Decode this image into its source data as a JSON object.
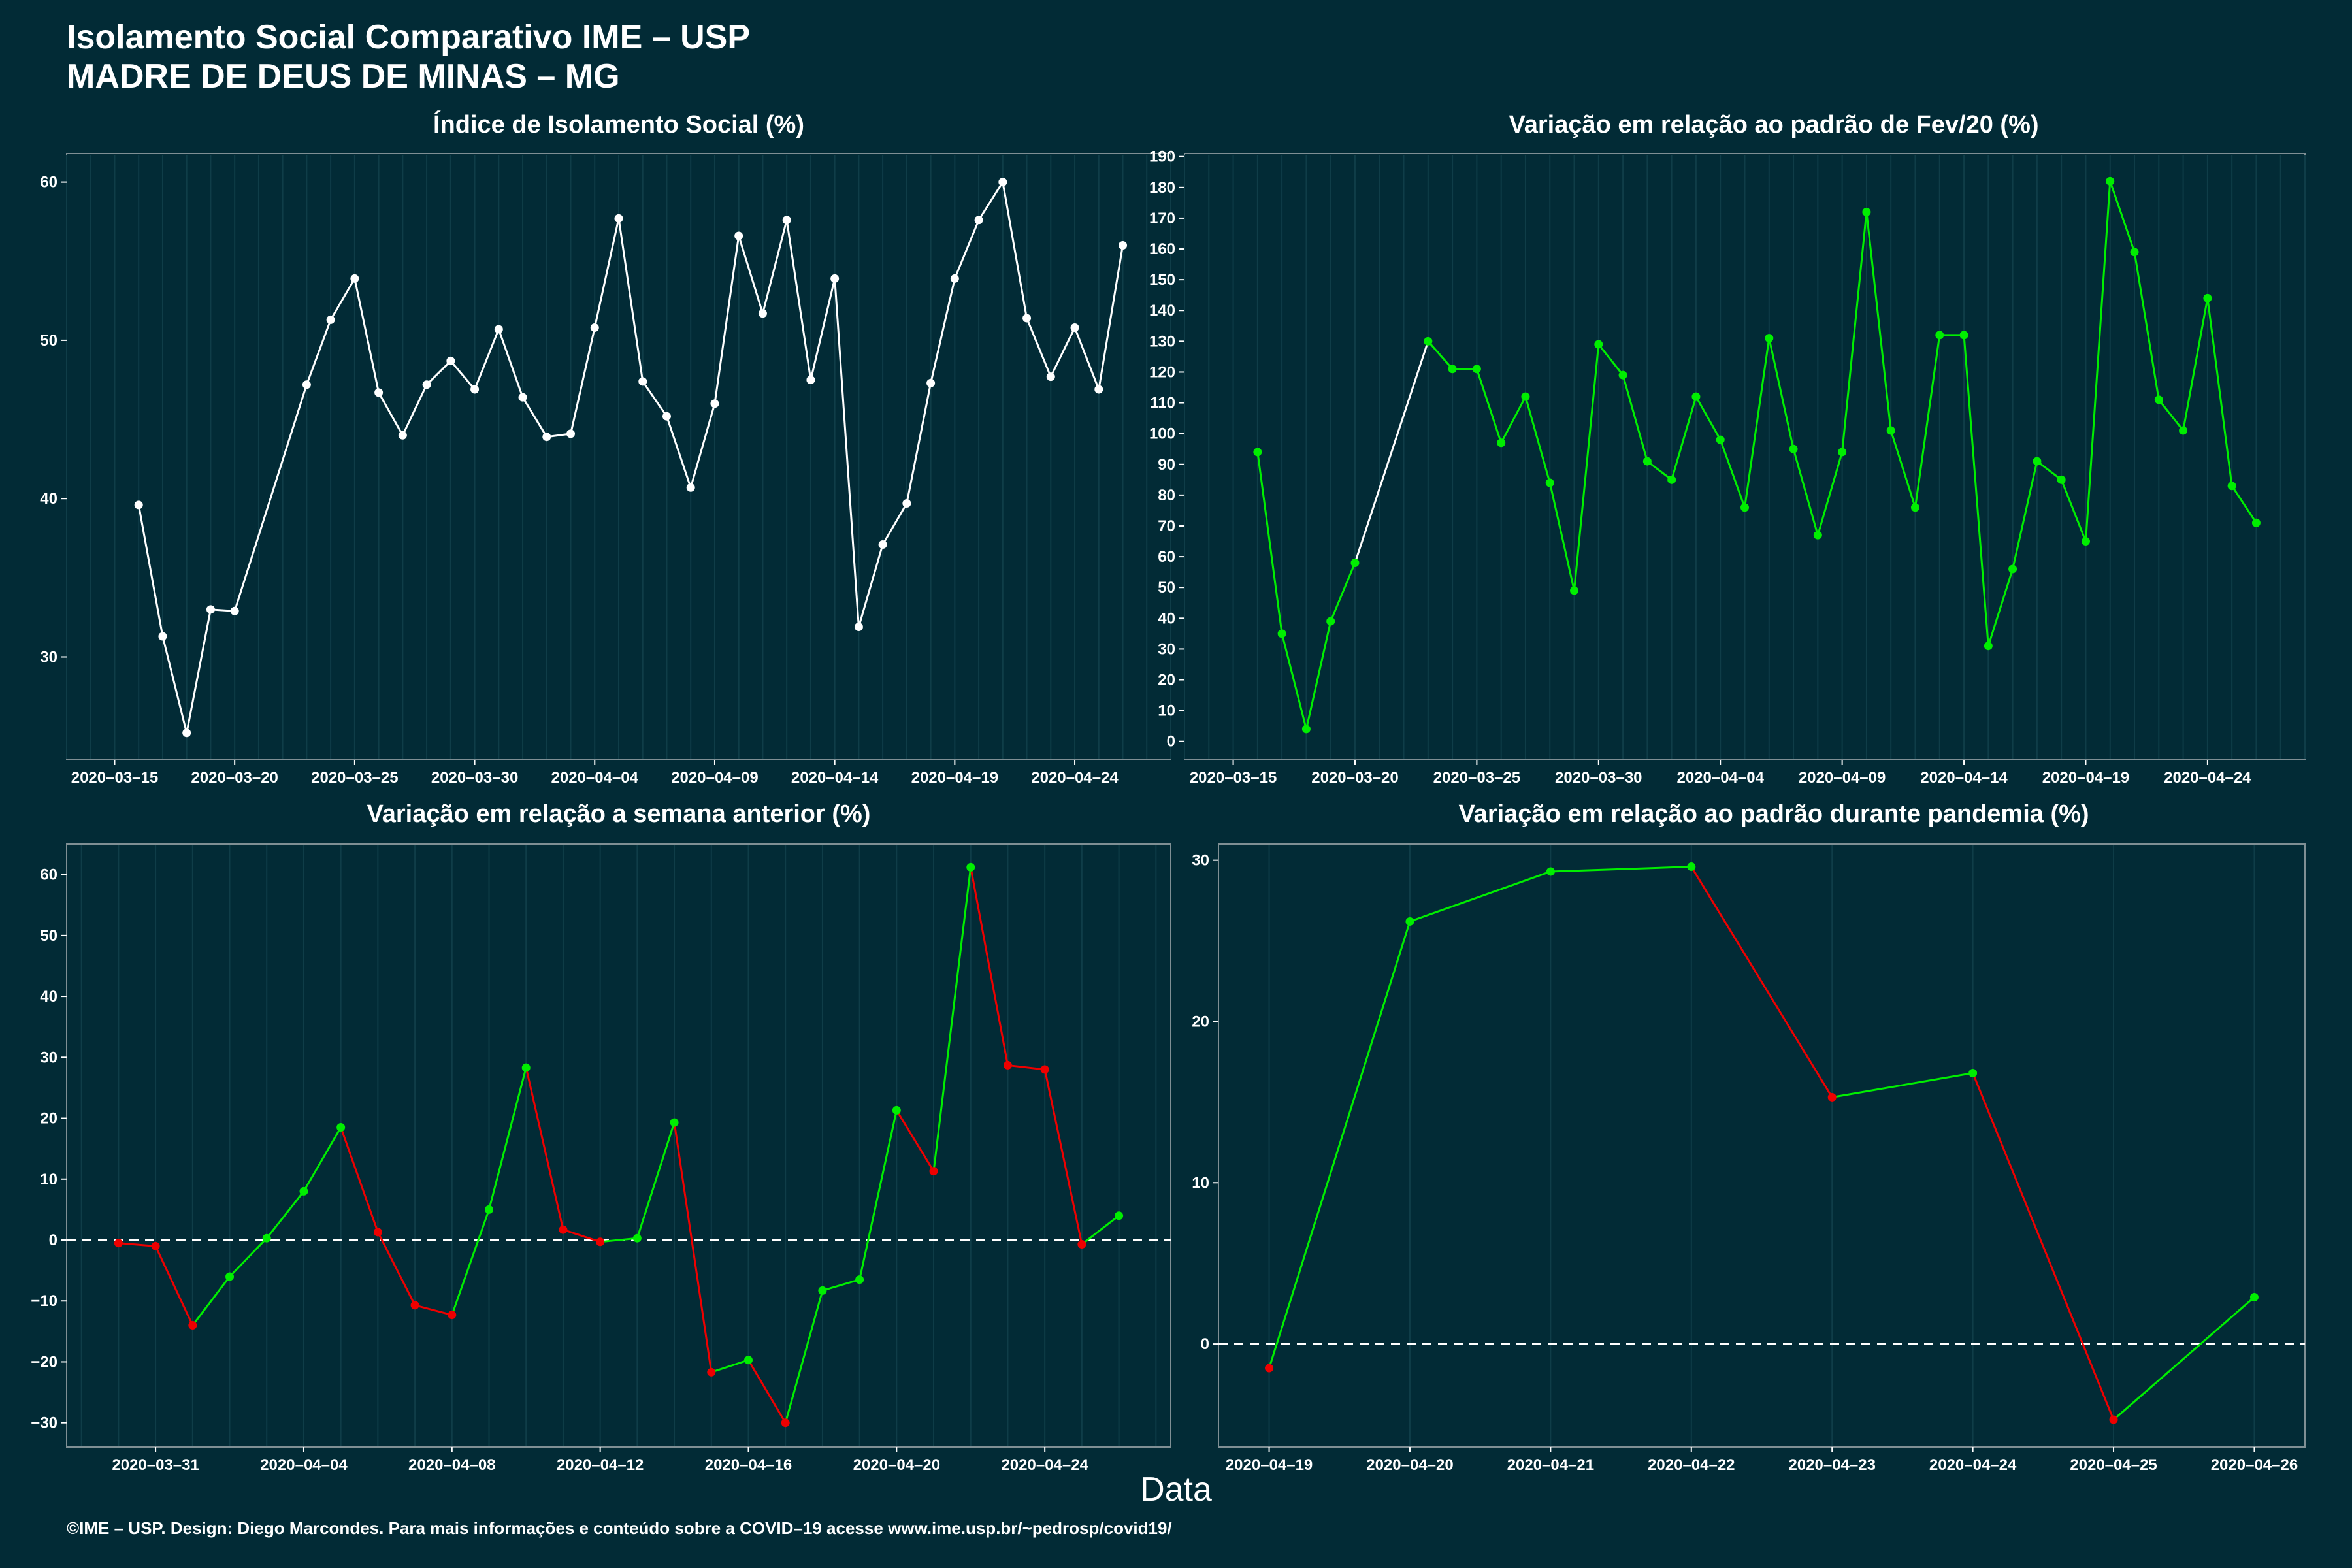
{
  "header": {
    "title_line1": "Isolamento Social Comparativo IME – USP",
    "title_line2": "MADRE DE DEUS DE MINAS – MG"
  },
  "xlabel": "Data",
  "footer": "©IME – USP. Design: Diego Marcondes. Para mais informações e conteúdo sobre a COVID–19 acesse www.ime.usp.br/~pedrosp/covid19/",
  "colors": {
    "background": "#022b36",
    "positive": "#00ee00",
    "negative": "#ee0000",
    "neutral": "#ffffff"
  },
  "chart_data": [
    {
      "type": "line",
      "title": "Índice de Isolamento Social (%)",
      "color_mode": "white",
      "x": [
        "2020-03-16",
        "2020-03-17",
        "2020-03-18",
        "2020-03-19",
        "2020-03-20",
        "2020-03-23",
        "2020-03-24",
        "2020-03-25",
        "2020-03-26",
        "2020-03-27",
        "2020-03-28",
        "2020-03-29",
        "2020-03-30",
        "2020-03-31",
        "2020-04-01",
        "2020-04-02",
        "2020-04-03",
        "2020-04-04",
        "2020-04-05",
        "2020-04-06",
        "2020-04-07",
        "2020-04-08",
        "2020-04-09",
        "2020-04-10",
        "2020-04-11",
        "2020-04-12",
        "2020-04-13",
        "2020-04-14",
        "2020-04-15",
        "2020-04-16",
        "2020-04-17",
        "2020-04-18",
        "2020-04-19",
        "2020-04-20",
        "2020-04-21",
        "2020-04-22",
        "2020-04-23",
        "2020-04-24",
        "2020-04-25",
        "2020-04-26"
      ],
      "y": [
        39.6,
        31.3,
        25.2,
        33.0,
        32.9,
        47.2,
        51.3,
        53.9,
        46.7,
        44.0,
        47.2,
        48.7,
        46.9,
        50.7,
        46.4,
        43.9,
        44.1,
        50.8,
        57.7,
        47.4,
        45.2,
        40.7,
        46.0,
        56.6,
        51.7,
        57.6,
        47.5,
        53.9,
        31.9,
        37.1,
        39.7,
        47.3,
        53.9,
        57.6,
        60.0,
        51.4,
        47.7,
        50.8,
        46.9,
        56.0
      ],
      "xticks": [
        "2020–03–15",
        "2020–03–20",
        "2020–03–25",
        "2020–03–30",
        "2020–04–04",
        "2020–04–09",
        "2020–04–14",
        "2020–04–19",
        "2020–04–24"
      ],
      "yticks": [
        "30",
        "40",
        "50",
        "60"
      ],
      "xlim": [
        "2020-03-13",
        "2020-04-28"
      ],
      "ylim": [
        23.5,
        61.8
      ],
      "reference_line": null
    },
    {
      "type": "line",
      "title": "Variação em relação ao padrão de Fev/20 (%)",
      "color_mode": "green_then_white",
      "x": [
        "2020-03-16",
        "2020-03-17",
        "2020-03-18",
        "2020-03-19",
        "2020-03-20",
        "2020-03-23",
        "2020-03-24",
        "2020-03-25",
        "2020-03-26",
        "2020-03-27",
        "2020-03-28",
        "2020-03-29",
        "2020-03-30",
        "2020-03-31",
        "2020-04-01",
        "2020-04-02",
        "2020-04-03",
        "2020-04-04",
        "2020-04-05",
        "2020-04-06",
        "2020-04-07",
        "2020-04-08",
        "2020-04-09",
        "2020-04-10",
        "2020-04-11",
        "2020-04-12",
        "2020-04-13",
        "2020-04-14",
        "2020-04-15",
        "2020-04-16",
        "2020-04-17",
        "2020-04-18",
        "2020-04-19",
        "2020-04-20",
        "2020-04-21",
        "2020-04-22",
        "2020-04-23",
        "2020-04-24",
        "2020-04-25",
        "2020-04-26"
      ],
      "y": [
        94,
        35,
        4,
        39,
        58,
        130,
        121,
        121,
        97,
        112,
        84,
        49,
        129,
        119,
        91,
        85,
        112,
        98,
        76,
        131,
        95,
        67,
        94,
        172,
        101,
        76,
        132,
        132,
        31,
        56,
        91,
        85,
        65,
        182,
        159,
        111,
        101,
        144,
        83,
        71
      ],
      "white_segments": [
        4
      ],
      "xticks": [
        "2020–03–15",
        "2020–03–20",
        "2020–03–25",
        "2020–03–30",
        "2020–04–04",
        "2020–04–09",
        "2020–04–14",
        "2020–04–19",
        "2020–04–24"
      ],
      "yticks": [
        "0",
        "10",
        "20",
        "30",
        "40",
        "50",
        "60",
        "70",
        "80",
        "90",
        "100",
        "110",
        "120",
        "130",
        "140",
        "150",
        "160",
        "170",
        "180",
        "190"
      ],
      "xlim": [
        "2020-03-13",
        "2020-04-28"
      ],
      "ylim": [
        -6,
        191
      ],
      "reference_line": null
    },
    {
      "type": "line",
      "title": "Variação em relação a semana anterior (%)",
      "color_mode": "sign",
      "x": [
        "2020-03-30",
        "2020-03-31",
        "2020-04-01",
        "2020-04-02",
        "2020-04-03",
        "2020-04-04",
        "2020-04-05",
        "2020-04-06",
        "2020-04-07",
        "2020-04-08",
        "2020-04-09",
        "2020-04-10",
        "2020-04-11",
        "2020-04-12",
        "2020-04-13",
        "2020-04-14",
        "2020-04-15",
        "2020-04-16",
        "2020-04-17",
        "2020-04-18",
        "2020-04-19",
        "2020-04-20",
        "2020-04-21",
        "2020-04-22",
        "2020-04-23",
        "2020-04-24",
        "2020-04-25",
        "2020-04-26"
      ],
      "y": [
        -0.5,
        -1,
        -14,
        -6,
        0.3,
        8,
        18.5,
        1.3,
        -10.7,
        -12.3,
        5,
        28.3,
        1.7,
        -0.3,
        0.3,
        19.3,
        -21.7,
        -19.7,
        -30,
        -8.3,
        -6.5,
        21.3,
        11.3,
        61.2,
        28.7,
        28,
        -0.7,
        4
      ],
      "xticks": [
        "2020–03–31",
        "2020–04–04",
        "2020–04–08",
        "2020–04–12",
        "2020–04–16",
        "2020–04–20",
        "2020–04–24"
      ],
      "yticks": [
        "−30",
        "−20",
        "−10",
        "0",
        "10",
        "20",
        "30",
        "40",
        "50",
        "60"
      ],
      "xlim": [
        "2020-03-28.6",
        "2020-04-27.4"
      ],
      "ylim": [
        -34,
        65
      ],
      "reference_line": 0
    },
    {
      "type": "line",
      "title": "Variação em relação ao padrão durante pandemia (%)",
      "color_mode": "sign",
      "x": [
        "2020-04-19",
        "2020-04-20",
        "2020-04-21",
        "2020-04-22",
        "2020-04-23",
        "2020-04-24",
        "2020-04-25",
        "2020-04-26"
      ],
      "y": [
        -1.5,
        26.2,
        29.3,
        29.6,
        15.3,
        16.8,
        -4.7,
        2.9
      ],
      "xticks": [
        "2020–04–19",
        "2020–04–20",
        "2020–04–21",
        "2020–04–22",
        "2020–04–23",
        "2020–04–24",
        "2020–04–25",
        "2020–04–26"
      ],
      "yticks": [
        "0",
        "10",
        "20",
        "30"
      ],
      "xlim": [
        "2020-04-18.64",
        "2020-04-26.36"
      ],
      "ylim": [
        -6.4,
        31.0
      ],
      "reference_line": 0
    }
  ]
}
